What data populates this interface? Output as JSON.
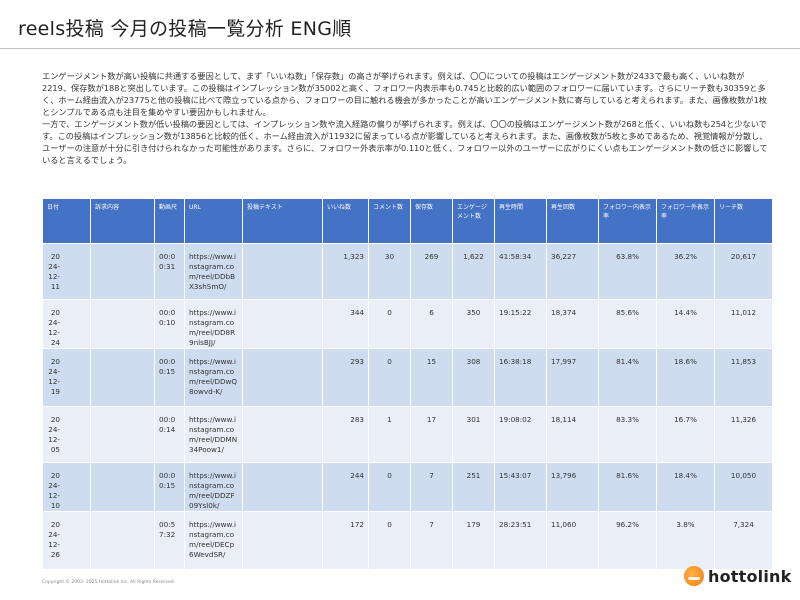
{
  "title": "reels投稿 今月の投稿一覧分析 ENG順",
  "summary": {
    "p1": "エンゲージメント数が高い投稿に共通する要因として、まず「いいね数」「保存数」の高さが挙げられます。例えば、〇〇についての投稿はエンゲージメント数が2433で最も高く、いいね数が2219、保存数が188と突出しています。この投稿はインプレッション数が35002と高く、フォロワー内表示率も0.745と比較的広い範囲のフォロワーに届いています。さらにリーチ数も30359と多く、ホーム経由流入が23775と他の投稿に比べて際立っている点から、フォロワーの目に触れる機会が多かったことが高いエンゲージメント数に寄与していると考えられます。また、画像枚数が1枚とシンプルである点も注目を集めやすい要因かもしれません。",
    "p2": "一方で、エンゲージメント数が低い投稿の要因としては、インプレッション数や流入経路の偏りが挙げられます。例えば、〇〇の投稿はエンゲージメント数が268と低く、いいね数も254と少ないです。この投稿はインプレッション数が13856と比較的低く、ホーム経由流入が11932に留まっている点が影響していると考えられます。また、画像枚数が5枚と多めであるため、視覚情報が分散し、ユーザーの注意が十分に引き付けられなかった可能性があります。さらに、フォロワー外表示率が0.110と低く、フォロワー以外のユーザーに広がりにくい点もエンゲージメント数の低さに影響していると言えるでしょう。"
  },
  "table": {
    "headers": [
      "日付",
      "訴求内容",
      "動画尺",
      "URL",
      "投稿テキスト",
      "いいね数",
      "コメント数",
      "保存数",
      "エンゲージメント数",
      "再生時間",
      "再生回数",
      "フォロワー内表示率",
      "フォロワー外表示率",
      "リーチ数"
    ],
    "rows": [
      {
        "date": "2024-12-11",
        "appeal": "",
        "duration": "00:00:31",
        "url": "https://www.instagram.com/reel/DDbBX3shSmO/",
        "text": "",
        "likes": "1,323",
        "comments": "30",
        "saves": "269",
        "engagement": "1,622",
        "play_time": "41:58:34",
        "plays": "36,227",
        "follower_in": "63.8%",
        "follower_out": "36.2%",
        "reach": "20,617"
      },
      {
        "date": "2024-12-24",
        "appeal": "",
        "duration": "00:00:10",
        "url": "https://www.instagram.com/reel/DD8R9nlsBJJ/",
        "text": "",
        "likes": "344",
        "comments": "0",
        "saves": "6",
        "engagement": "350",
        "play_time": "19:15:22",
        "plays": "18,374",
        "follower_in": "85.6%",
        "follower_out": "14.4%",
        "reach": "11,012"
      },
      {
        "date": "2024-12-19",
        "appeal": "",
        "duration": "00:00:15",
        "url": "https://www.instagram.com/reel/DDwQ8owvd-K/",
        "text": "",
        "likes": "293",
        "comments": "0",
        "saves": "15",
        "engagement": "308",
        "play_time": "16:38:18",
        "plays": "17,997",
        "follower_in": "81.4%",
        "follower_out": "18.6%",
        "reach": "11,853"
      },
      {
        "date": "2024-12-05",
        "appeal": "",
        "duration": "00:00:14",
        "url": "https://www.instagram.com/reel/DDMN34Poow1/",
        "text": "",
        "likes": "283",
        "comments": "1",
        "saves": "17",
        "engagement": "301",
        "play_time": "19:08:02",
        "plays": "18,114",
        "follower_in": "83.3%",
        "follower_out": "16.7%",
        "reach": "11,326"
      },
      {
        "date": "2024-12-10",
        "appeal": "",
        "duration": "00:00:15",
        "url": "https://www.instagram.com/reel/DDZF09Ysl0k/",
        "text": "",
        "likes": "244",
        "comments": "0",
        "saves": "7",
        "engagement": "251",
        "play_time": "15:43:07",
        "plays": "13,796",
        "follower_in": "81.6%",
        "follower_out": "18.4%",
        "reach": "10,050"
      },
      {
        "date": "2024-12-26",
        "appeal": "",
        "duration": "00:57:32",
        "url": "https://www.instagram.com/reel/DECp6WevdSR/",
        "text": "",
        "likes": "172",
        "comments": "0",
        "saves": "7",
        "engagement": "179",
        "play_time": "28:23:51",
        "plays": "11,060",
        "follower_in": "96.2%",
        "follower_out": "3.8%",
        "reach": "7,324"
      }
    ]
  },
  "footer": {
    "copyright": "Copyright © 2003- 2025 Hottolink Inc. All Rights Reserved.",
    "logo_text": "hottolink"
  },
  "colors": {
    "header_bg": "#4472c4",
    "row_odd": "#cfdcef",
    "row_even": "#e9eef7",
    "logo_orange": "#f07a13"
  }
}
